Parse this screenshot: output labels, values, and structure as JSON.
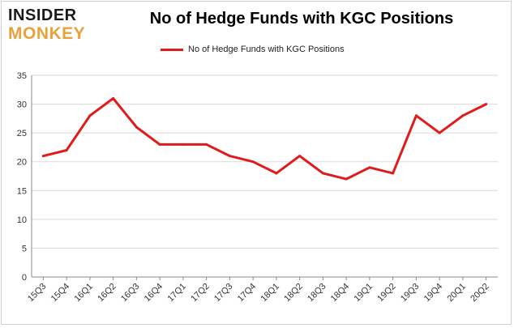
{
  "logo": {
    "line1": "INSIDER",
    "line2": "MONKEY",
    "colors": {
      "line1": "#1a1a1a",
      "line2": "#e8a23a",
      "accent": "#c0392b"
    }
  },
  "chart_data": {
    "type": "line",
    "title": "No of Hedge Funds with KGC Positions",
    "xlabel": "",
    "ylabel": "",
    "ylim": [
      0,
      35
    ],
    "yticks": [
      0,
      5,
      10,
      15,
      20,
      25,
      30,
      35
    ],
    "grid": true,
    "legend_position": "top-center",
    "categories": [
      "15Q3",
      "15Q4",
      "16Q1",
      "16Q2",
      "16Q3",
      "16Q4",
      "17Q1",
      "17Q2",
      "17Q3",
      "17Q4",
      "18Q1",
      "18Q2",
      "18Q3",
      "18Q4",
      "19Q1",
      "19Q2",
      "19Q3",
      "19Q4",
      "20Q1",
      "20Q2"
    ],
    "series": [
      {
        "name": "No of Hedge Funds with KGC Positions",
        "color": "#e01b1b",
        "values": [
          21,
          22,
          28,
          31,
          26,
          23,
          23,
          23,
          21,
          20,
          18,
          21,
          18,
          17,
          19,
          18,
          28,
          25,
          28,
          30
        ]
      }
    ]
  }
}
